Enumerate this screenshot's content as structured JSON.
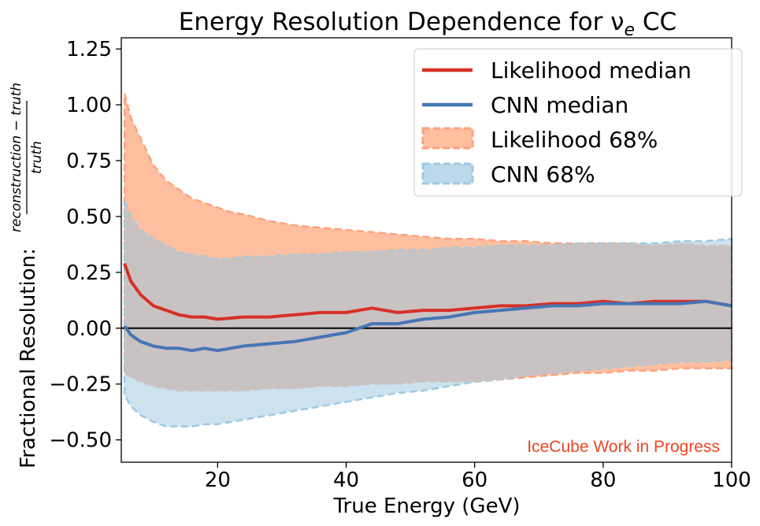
{
  "chart_data": {
    "type": "line",
    "title": "Energy Resolution Dependence for ν",
    "title_sub": "e",
    "title_suffix": " CC",
    "xlabel": "True Energy (GeV)",
    "ylabel_prefix": "Fractional Resolution: ",
    "ylabel_num": "reconstruction − truth",
    "ylabel_den": "truth",
    "xlim": [
      5,
      100
    ],
    "ylim": [
      -0.6,
      1.3
    ],
    "xticks": [
      20,
      40,
      60,
      80,
      100
    ],
    "yticks": [
      -0.5,
      -0.25,
      0.0,
      0.25,
      0.5,
      0.75,
      1.0,
      1.25
    ],
    "ytick_labels": [
      "−0.50",
      "−0.25",
      "0.00",
      "0.25",
      "0.50",
      "0.75",
      "1.00",
      "1.25"
    ],
    "zero_line": 0,
    "grid": false,
    "legend_position": "top-right",
    "annotation": "IceCube Work in Progress",
    "annotation_color": "#ee4422",
    "series": [
      {
        "name": "Likelihood median",
        "kind": "line",
        "color": "#d73027",
        "x": [
          5.5,
          6.5,
          8,
          10,
          12,
          14,
          16,
          18,
          20,
          24,
          28,
          32,
          36,
          40,
          44,
          48,
          52,
          56,
          60,
          64,
          68,
          72,
          76,
          80,
          84,
          88,
          92,
          96,
          100
        ],
        "y": [
          0.29,
          0.21,
          0.15,
          0.1,
          0.08,
          0.06,
          0.05,
          0.05,
          0.04,
          0.05,
          0.05,
          0.06,
          0.07,
          0.07,
          0.09,
          0.07,
          0.08,
          0.08,
          0.09,
          0.1,
          0.1,
          0.11,
          0.11,
          0.12,
          0.11,
          0.12,
          0.12,
          0.12,
          0.1
        ]
      },
      {
        "name": "CNN median",
        "kind": "line",
        "color": "#4575b4",
        "x": [
          5.5,
          6.5,
          8,
          10,
          12,
          14,
          16,
          18,
          20,
          24,
          28,
          32,
          36,
          40,
          44,
          48,
          52,
          56,
          60,
          64,
          68,
          72,
          76,
          80,
          84,
          88,
          92,
          96,
          100
        ],
        "y": [
          0.01,
          -0.03,
          -0.06,
          -0.08,
          -0.09,
          -0.09,
          -0.1,
          -0.09,
          -0.1,
          -0.08,
          -0.07,
          -0.06,
          -0.04,
          -0.02,
          0.02,
          0.02,
          0.04,
          0.05,
          0.07,
          0.08,
          0.09,
          0.1,
          0.1,
          0.11,
          0.11,
          0.11,
          0.11,
          0.12,
          0.1
        ]
      },
      {
        "name": "Likelihood 68%",
        "kind": "band",
        "color": "#fdbf9f",
        "edge_color": "#fca27e",
        "x": [
          5.5,
          6.5,
          8,
          10,
          12,
          14,
          16,
          18,
          20,
          22,
          24,
          28,
          32,
          36,
          40,
          44,
          48,
          52,
          56,
          60,
          64,
          68,
          72,
          76,
          80,
          84,
          88,
          92,
          96,
          100
        ],
        "upper": [
          1.05,
          0.94,
          0.85,
          0.73,
          0.66,
          0.62,
          0.58,
          0.56,
          0.54,
          0.52,
          0.51,
          0.48,
          0.46,
          0.45,
          0.44,
          0.43,
          0.42,
          0.41,
          0.4,
          0.4,
          0.39,
          0.39,
          0.38,
          0.38,
          0.38,
          0.38,
          0.37,
          0.38,
          0.37,
          0.37
        ],
        "lower": [
          -0.2,
          -0.22,
          -0.24,
          -0.26,
          -0.27,
          -0.28,
          -0.28,
          -0.28,
          -0.28,
          -0.28,
          -0.28,
          -0.27,
          -0.27,
          -0.26,
          -0.26,
          -0.25,
          -0.25,
          -0.24,
          -0.24,
          -0.24,
          -0.23,
          -0.22,
          -0.21,
          -0.2,
          -0.2,
          -0.19,
          -0.19,
          -0.18,
          -0.18,
          -0.18
        ]
      },
      {
        "name": "CNN 68%",
        "kind": "band",
        "color": "#bcd8ea",
        "edge_color": "#9ecae1",
        "x": [
          5.5,
          6.5,
          8,
          10,
          12,
          14,
          16,
          18,
          20,
          22,
          24,
          28,
          32,
          36,
          40,
          44,
          48,
          52,
          56,
          60,
          64,
          68,
          72,
          76,
          80,
          84,
          88,
          92,
          96,
          100
        ],
        "upper": [
          0.57,
          0.5,
          0.44,
          0.4,
          0.37,
          0.34,
          0.33,
          0.32,
          0.31,
          0.31,
          0.32,
          0.32,
          0.33,
          0.33,
          0.34,
          0.34,
          0.35,
          0.35,
          0.36,
          0.36,
          0.37,
          0.37,
          0.37,
          0.38,
          0.38,
          0.38,
          0.38,
          0.39,
          0.39,
          0.4
        ],
        "lower": [
          -0.3,
          -0.35,
          -0.39,
          -0.42,
          -0.44,
          -0.44,
          -0.44,
          -0.43,
          -0.43,
          -0.42,
          -0.41,
          -0.39,
          -0.37,
          -0.35,
          -0.33,
          -0.31,
          -0.29,
          -0.28,
          -0.26,
          -0.24,
          -0.23,
          -0.21,
          -0.2,
          -0.19,
          -0.18,
          -0.17,
          -0.16,
          -0.15,
          -0.15,
          -0.14
        ]
      }
    ]
  }
}
